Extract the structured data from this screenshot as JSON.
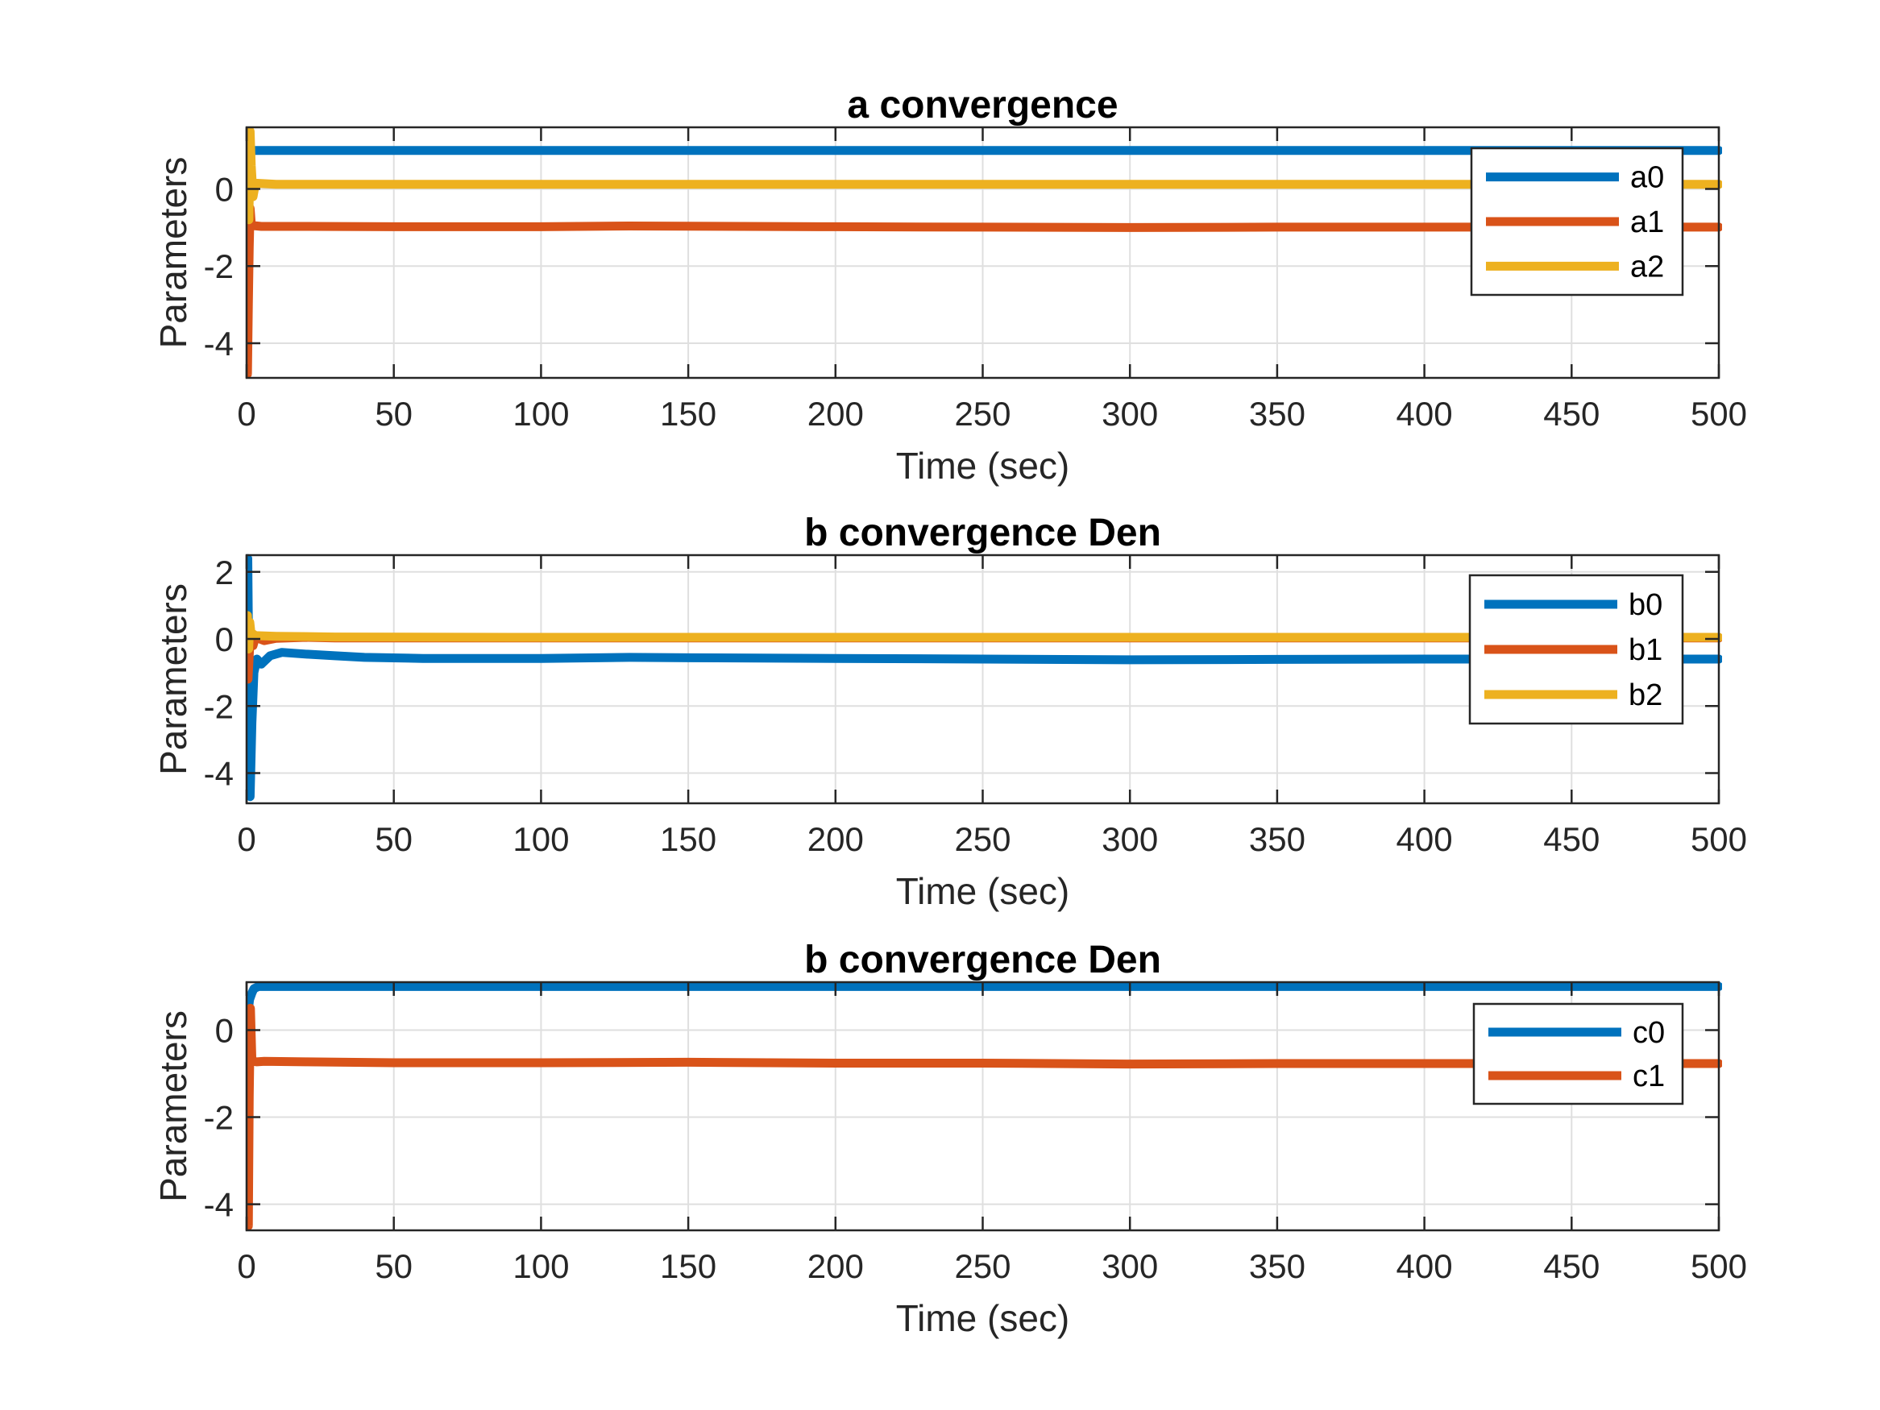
{
  "figure": {
    "background": "#ffffff"
  },
  "chart_data": [
    {
      "type": "line",
      "title": "a convergence",
      "xlabel": "Time (sec)",
      "ylabel": "Parameters",
      "xlim": [
        0,
        500
      ],
      "ylim": [
        -4.9,
        1.6
      ],
      "xticks": [
        0,
        50,
        100,
        150,
        200,
        250,
        300,
        350,
        400,
        450,
        500
      ],
      "yticks": [
        -4,
        -2,
        0
      ],
      "grid": true,
      "legend_position": "top-right",
      "series": [
        {
          "name": "a0",
          "color": "#0072BD",
          "x": [
            0,
            0.3,
            0.7,
            1.2,
            2,
            10,
            100,
            200,
            300,
            400,
            500
          ],
          "y": [
            0,
            0.4,
            0.9,
            1.0,
            1.0,
            1.0,
            1.0,
            1.0,
            1.0,
            1.0,
            1.0
          ]
        },
        {
          "name": "a1",
          "color": "#D95319",
          "x": [
            0,
            0.3,
            0.6,
            0.9,
            1.2,
            1.6,
            2.2,
            5,
            20,
            50,
            100,
            130,
            200,
            250,
            300,
            350,
            400,
            450,
            500
          ],
          "y": [
            -2.5,
            -4.8,
            -3.0,
            -1.5,
            -0.5,
            -0.9,
            -0.95,
            -0.97,
            -0.97,
            -0.98,
            -0.98,
            -0.96,
            -0.98,
            -0.99,
            -1.0,
            -0.99,
            -0.99,
            -0.99,
            -0.99
          ]
        },
        {
          "name": "a2",
          "color": "#EDB120",
          "x": [
            0,
            0.4,
            0.8,
            1.2,
            1.6,
            2.2,
            3,
            10,
            100,
            200,
            300,
            400,
            500
          ],
          "y": [
            0.3,
            1.1,
            -0.8,
            1.5,
            0.6,
            -0.2,
            0.15,
            0.12,
            0.12,
            0.12,
            0.12,
            0.12,
            0.12
          ]
        }
      ]
    },
    {
      "type": "line",
      "title": "b convergence Den",
      "xlabel": "Time (sec)",
      "ylabel": "Parameters",
      "xlim": [
        0,
        500
      ],
      "ylim": [
        -4.9,
        2.5
      ],
      "xticks": [
        0,
        50,
        100,
        150,
        200,
        250,
        300,
        350,
        400,
        450,
        500
      ],
      "yticks": [
        -4,
        -2,
        0,
        2
      ],
      "grid": true,
      "legend_position": "top-right",
      "series": [
        {
          "name": "b0",
          "color": "#0072BD",
          "x": [
            0,
            0.4,
            0.8,
            1.2,
            1.8,
            2.5,
            3.5,
            5,
            8,
            12,
            20,
            30,
            40,
            60,
            100,
            130,
            150,
            200,
            250,
            300,
            350,
            400,
            450,
            500
          ],
          "y": [
            0,
            2.4,
            -1.5,
            -4.7,
            -2.5,
            -1.0,
            -0.6,
            -0.75,
            -0.5,
            -0.4,
            -0.45,
            -0.5,
            -0.55,
            -0.58,
            -0.58,
            -0.55,
            -0.56,
            -0.58,
            -0.6,
            -0.62,
            -0.61,
            -0.6,
            -0.6,
            -0.6
          ]
        },
        {
          "name": "b1",
          "color": "#D95319",
          "x": [
            0,
            0.5,
            1,
            1.5,
            2.2,
            3,
            6,
            10,
            20,
            30,
            50,
            100,
            200,
            300,
            400,
            500
          ],
          "y": [
            0,
            -1.2,
            -0.3,
            0.1,
            -0.2,
            0.05,
            -0.05,
            0.02,
            0.05,
            0.03,
            0.03,
            0.03,
            0.03,
            0.03,
            0.03,
            0.03
          ]
        },
        {
          "name": "b2",
          "color": "#EDB120",
          "x": [
            0,
            0.3,
            0.7,
            1.1,
            1.6,
            2.2,
            3,
            10,
            30,
            100,
            200,
            300,
            400,
            500
          ],
          "y": [
            0.2,
            0.7,
            -0.3,
            0.5,
            0.1,
            0.15,
            0.1,
            0.08,
            0.06,
            0.05,
            0.05,
            0.05,
            0.05,
            0.05
          ]
        }
      ]
    },
    {
      "type": "line",
      "title": "b convergence Den",
      "xlabel": "Time (sec)",
      "ylabel": "Parameters",
      "xlim": [
        0,
        500
      ],
      "ylim": [
        -4.6,
        1.1
      ],
      "xticks": [
        0,
        50,
        100,
        150,
        200,
        250,
        300,
        350,
        400,
        450,
        500
      ],
      "yticks": [
        -4,
        -2,
        0
      ],
      "grid": true,
      "legend_position": "top-right",
      "series": [
        {
          "name": "c0",
          "color": "#0072BD",
          "x": [
            0,
            0.5,
            1,
            1.8,
            2.5,
            4,
            10,
            100,
            200,
            300,
            400,
            500
          ],
          "y": [
            0,
            0.4,
            0.7,
            0.85,
            0.95,
            1.0,
            1.0,
            1.0,
            1.0,
            1.0,
            1.0,
            1.0
          ]
        },
        {
          "name": "c1",
          "color": "#D95319",
          "x": [
            0,
            0.3,
            0.6,
            0.9,
            1.3,
            1.8,
            2.5,
            3.5,
            6,
            20,
            50,
            100,
            150,
            200,
            250,
            300,
            350,
            400,
            450,
            500
          ],
          "y": [
            0,
            -2.5,
            -4.5,
            -1.5,
            0.5,
            -0.7,
            -0.72,
            -0.73,
            -0.72,
            -0.73,
            -0.75,
            -0.75,
            -0.74,
            -0.76,
            -0.76,
            -0.78,
            -0.77,
            -0.77,
            -0.77,
            -0.77
          ]
        }
      ]
    }
  ]
}
